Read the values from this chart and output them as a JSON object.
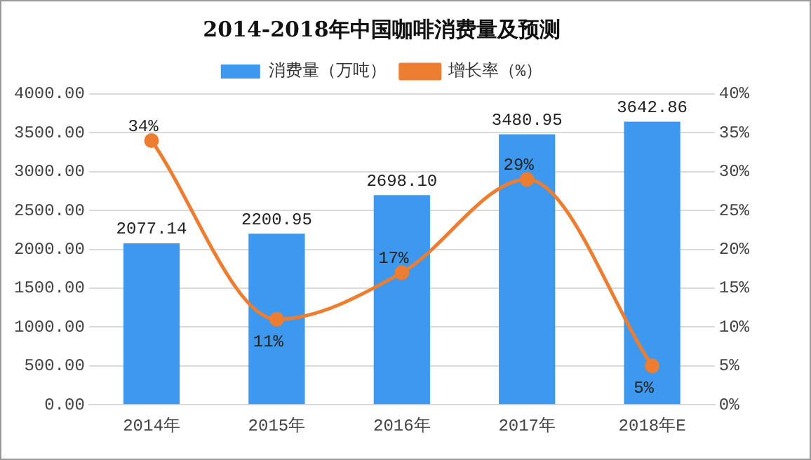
{
  "chart_data": {
    "type": "bar",
    "title": "2014-2018年中国咖啡消费量及预测",
    "categories": [
      "2014年",
      "2015年",
      "2016年",
      "2017年",
      "2018年E"
    ],
    "series": [
      {
        "name": "消费量（万吨）",
        "color": "#3e99ee",
        "values": [
          2077.14,
          2200.95,
          2698.1,
          3480.95,
          3642.86
        ],
        "value_labels": [
          "2077.14",
          "2200.95",
          "2698.10",
          "3480.95",
          "3642.86"
        ]
      },
      {
        "name": "增长率（%）",
        "type": "line",
        "axis": "y2",
        "color": "#ed7d31",
        "values": [
          34,
          11,
          17,
          29,
          5
        ],
        "value_labels": [
          "34%",
          "11%",
          "17%",
          "29%",
          "5%"
        ]
      }
    ],
    "ylim": [
      0,
      4000
    ],
    "yticks": [
      {
        "value": 0,
        "label": "0.00"
      },
      {
        "value": 500,
        "label": "500.00"
      },
      {
        "value": 1000,
        "label": "1000.00"
      },
      {
        "value": 1500,
        "label": "1500.00"
      },
      {
        "value": 2000,
        "label": "2000.00"
      },
      {
        "value": 2500,
        "label": "2500.00"
      },
      {
        "value": 3000,
        "label": "3000.00"
      },
      {
        "value": 3500,
        "label": "3500.00"
      },
      {
        "value": 4000,
        "label": "4000.00"
      }
    ],
    "y2lim": [
      0,
      40
    ],
    "y2ticks": [
      {
        "value": 0,
        "label": "0%"
      },
      {
        "value": 5,
        "label": "5%"
      },
      {
        "value": 10,
        "label": "10%"
      },
      {
        "value": 15,
        "label": "15%"
      },
      {
        "value": 20,
        "label": "20%"
      },
      {
        "value": 25,
        "label": "25%"
      },
      {
        "value": 30,
        "label": "30%"
      },
      {
        "value": 35,
        "label": "35%"
      },
      {
        "value": 40,
        "label": "40%"
      }
    ],
    "grid": "y",
    "legend": "top",
    "marker": "circle",
    "line_style": "solid"
  }
}
